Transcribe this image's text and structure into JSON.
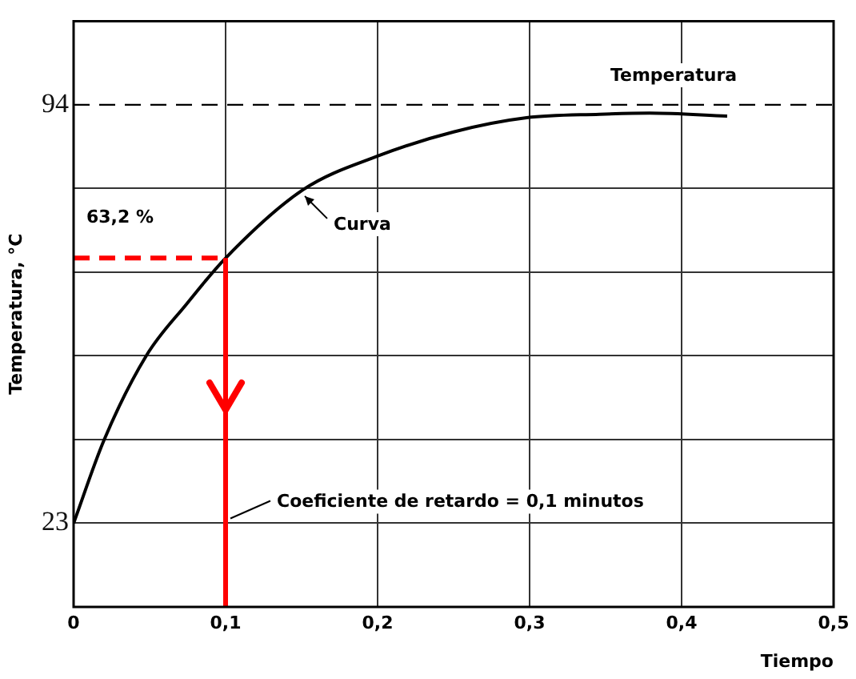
{
  "chart_data": {
    "type": "line",
    "xlabel": "Tiempo",
    "ylabel": "Temperatura, °C",
    "x": [
      0,
      0.02,
      0.048,
      0.074,
      0.1,
      0.151,
      0.2,
      0.25,
      0.298,
      0.346,
      0.379,
      0.43
    ],
    "series": [
      {
        "color": "#000000",
        "values": [
          23,
          37.1,
          51.5,
          60.1,
          68,
          79.6,
          85.3,
          89.4,
          91.8,
          92.4,
          92.6,
          92.1
        ]
      }
    ],
    "xlim": [
      0,
      0.5
    ],
    "xticks": [
      0,
      {
        "value": 0.1,
        "label": "0,1"
      },
      {
        "value": 0.2,
        "label": "0,2"
      },
      {
        "value": 0.3,
        "label": "0,3"
      },
      {
        "value": 0.4,
        "label": "0,4"
      },
      {
        "value": 0.5,
        "label": "0,5"
      }
    ],
    "ylim": [
      8.8,
      108.2
    ],
    "yticks": [
      23,
      {
        "value": 37.2,
        "label": null
      },
      {
        "value": 51.4,
        "label": null
      },
      {
        "value": 65.6,
        "label": null
      },
      {
        "value": 79.8,
        "label": null
      },
      94
    ],
    "grid": true,
    "legend": false,
    "marker": "none",
    "line_style": "solid",
    "ref_lines": [
      {
        "axis": "y",
        "value": 94,
        "label": "Temperatura",
        "color": "#000000",
        "line_style": "dashed"
      },
      {
        "axis": "y",
        "value": 68,
        "color": "#ff0000",
        "line_style": "dashed"
      },
      {
        "axis": "x",
        "value": 0.1,
        "label": "Coeficiente de retardo = 0,1 minutos",
        "color": "#ff0000",
        "line_style": "solid"
      }
    ],
    "annotations": [
      {
        "text": "Curva",
        "x": 0.15,
        "y": 79.6
      },
      {
        "text": "63,2 %",
        "y": 68
      }
    ]
  }
}
